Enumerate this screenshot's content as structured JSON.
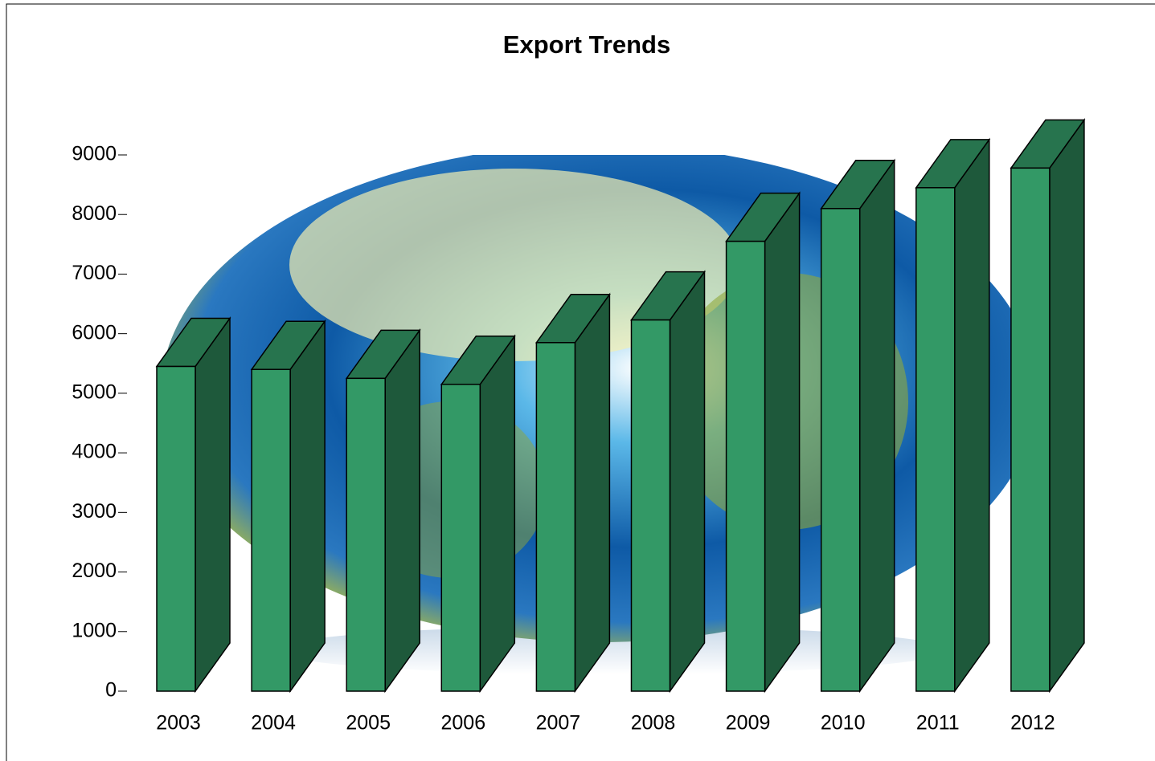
{
  "chart_data": {
    "type": "bar3d",
    "title": "Export Trends",
    "categories": [
      "2003",
      "2004",
      "2005",
      "2006",
      "2007",
      "2008",
      "2009",
      "2010",
      "2011",
      "2012"
    ],
    "values": [
      5450,
      5400,
      5250,
      5150,
      5850,
      6230,
      7550,
      8100,
      8450,
      8780
    ],
    "color": "#339966",
    "ylim": [
      0,
      9000
    ],
    "yticks": [
      0,
      1000,
      2000,
      3000,
      4000,
      5000,
      6000,
      7000,
      8000,
      9000
    ]
  }
}
